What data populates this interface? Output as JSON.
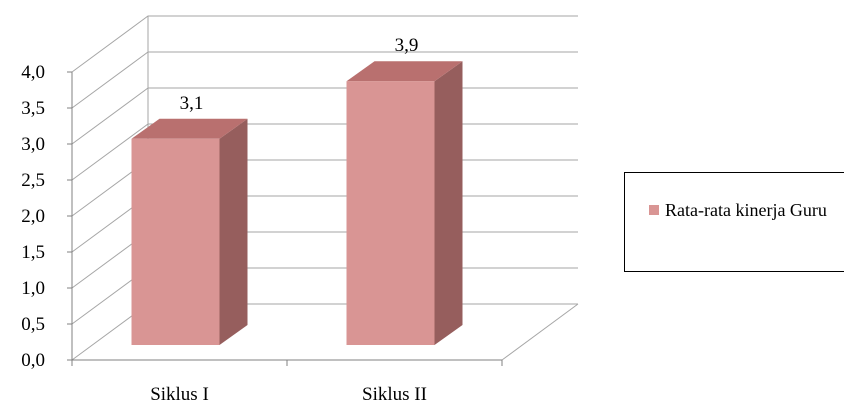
{
  "chart_data": {
    "type": "bar",
    "title": "",
    "xlabel": "",
    "ylabel": "",
    "categories": [
      "Siklus I",
      "Siklus II"
    ],
    "series": [
      {
        "name": "Rata-rata kinerja Guru",
        "values": [
          3.1,
          3.9
        ],
        "data_labels": [
          "3,1",
          "3,9"
        ]
      }
    ],
    "ylim": [
      0,
      4.0
    ],
    "yticks": [
      {
        "value": 0.0,
        "label": "0,0"
      },
      {
        "value": 0.5,
        "label": "0,5"
      },
      {
        "value": 1.0,
        "label": "1,0"
      },
      {
        "value": 1.5,
        "label": "1,5"
      },
      {
        "value": 2.0,
        "label": "2,0"
      },
      {
        "value": 2.5,
        "label": "2,5"
      },
      {
        "value": 3.0,
        "label": "3,0"
      },
      {
        "value": 3.5,
        "label": "3,5"
      },
      {
        "value": 4.0,
        "label": "4,0"
      }
    ],
    "grid": true,
    "style_3d": true,
    "legend_position": "right",
    "colors": {
      "bar_front": "#d99594",
      "bar_side": "#965e5d",
      "bar_top": "#b9706f",
      "grid": "#a6a6a6",
      "axis": "#808080"
    }
  }
}
